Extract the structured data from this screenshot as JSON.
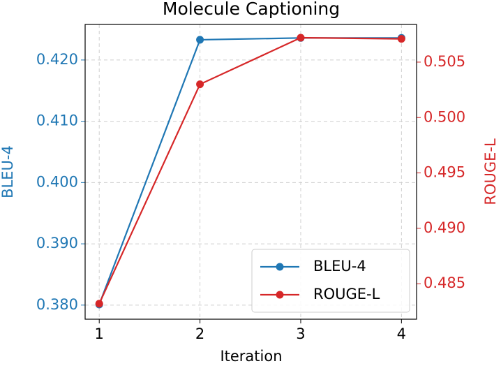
{
  "chart_data": {
    "type": "line",
    "title": "Molecule Captioning",
    "x_label": "Iteration",
    "y_label": "BLEU-4",
    "y2_label": "ROUGE-L",
    "x": [
      1,
      2,
      3,
      4
    ],
    "xlim": [
      0.86,
      4.15
    ],
    "xticks": [
      1,
      2,
      3,
      4
    ],
    "ylim": [
      0.3777,
      0.4258
    ],
    "yticks": [
      {
        "value": 0.38,
        "label": "0.380"
      },
      {
        "value": 0.39,
        "label": "0.390"
      },
      {
        "value": 0.4,
        "label": "0.400"
      },
      {
        "value": 0.41,
        "label": "0.410"
      },
      {
        "value": 0.42,
        "label": "0.420"
      }
    ],
    "y2lim": [
      0.4818,
      0.5084
    ],
    "y2ticks": [
      {
        "value": 0.485,
        "label": "0.485"
      },
      {
        "value": 0.49,
        "label": "0.490"
      },
      {
        "value": 0.495,
        "label": "0.495"
      },
      {
        "value": 0.5,
        "label": "0.500"
      },
      {
        "value": 0.505,
        "label": "0.505"
      }
    ],
    "grid": true,
    "legend": "lower right",
    "series": [
      {
        "name": "BLEU-4",
        "color": "#1f77b4",
        "values": [
          0.3801,
          0.4233,
          0.4236,
          0.4236
        ]
      },
      {
        "name": "ROUGE-L",
        "color": "#d62728",
        "axis": "y2",
        "values": [
          0.4832,
          0.503,
          0.5072,
          0.5071
        ]
      }
    ]
  }
}
